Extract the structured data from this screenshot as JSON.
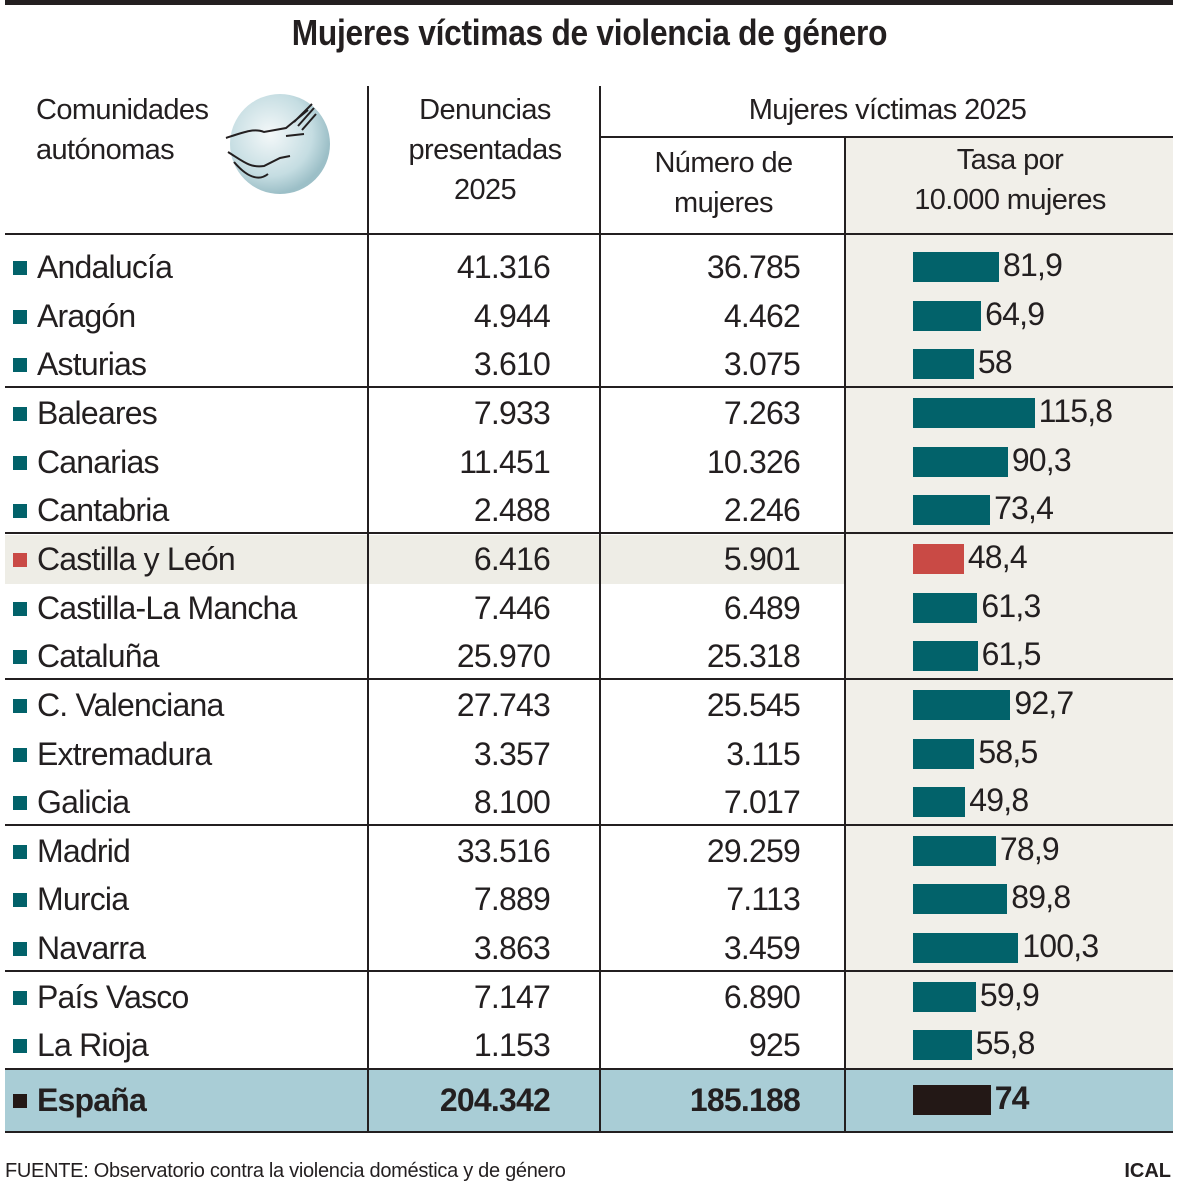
{
  "title": "Mujeres víctimas de violencia de género",
  "headers": {
    "region": [
      "Comunidades",
      "autónomas"
    ],
    "denuncias": [
      "Denuncias",
      "presentadas",
      "2025"
    ],
    "group": "Mujeres víctimas 2025",
    "numero": [
      "Número de",
      "mujeres"
    ],
    "tasa": [
      "Tasa por",
      "10.000 mujeres"
    ]
  },
  "icon": "hand-grabbing-wrist-icon",
  "colors": {
    "bar": "#02626a",
    "highlight_bar": "#c94a45",
    "total_bar": "#231816",
    "total_row_bg": "#a9cdd6",
    "highlight_row_bg": "#eeede6",
    "tasa_bg": "#f1efe9"
  },
  "chart_data": {
    "type": "table",
    "columns": [
      "Comunidades autónomas",
      "Denuncias presentadas 2025",
      "Número de mujeres",
      "Tasa por 10.000 mujeres"
    ],
    "rows": [
      {
        "region": "Andalucía",
        "denuncias": "41.316",
        "mujeres": "36.785",
        "tasa_label": "81,9",
        "tasa": 81.9
      },
      {
        "region": "Aragón",
        "denuncias": "4.944",
        "mujeres": "4.462",
        "tasa_label": "64,9",
        "tasa": 64.9
      },
      {
        "region": "Asturias",
        "denuncias": "3.610",
        "mujeres": "3.075",
        "tasa_label": "58",
        "tasa": 58
      },
      {
        "region": "Baleares",
        "denuncias": "7.933",
        "mujeres": "7.263",
        "tasa_label": "115,8",
        "tasa": 115.8
      },
      {
        "region": "Canarias",
        "denuncias": "11.451",
        "mujeres": "10.326",
        "tasa_label": "90,3",
        "tasa": 90.3
      },
      {
        "region": "Cantabria",
        "denuncias": "2.488",
        "mujeres": "2.246",
        "tasa_label": "73,4",
        "tasa": 73.4
      },
      {
        "region": "Castilla y León",
        "denuncias": "6.416",
        "mujeres": "5.901",
        "tasa_label": "48,4",
        "tasa": 48.4,
        "highlight": true
      },
      {
        "region": "Castilla-La Mancha",
        "denuncias": "7.446",
        "mujeres": "6.489",
        "tasa_label": "61,3",
        "tasa": 61.3
      },
      {
        "region": "Cataluña",
        "denuncias": "25.970",
        "mujeres": "25.318",
        "tasa_label": "61,5",
        "tasa": 61.5
      },
      {
        "region": "C. Valenciana",
        "denuncias": "27.743",
        "mujeres": "25.545",
        "tasa_label": "92,7",
        "tasa": 92.7
      },
      {
        "region": "Extremadura",
        "denuncias": "3.357",
        "mujeres": "3.115",
        "tasa_label": "58,5",
        "tasa": 58.5
      },
      {
        "region": "Galicia",
        "denuncias": "8.100",
        "mujeres": "7.017",
        "tasa_label": "49,8",
        "tasa": 49.8
      },
      {
        "region": "Madrid",
        "denuncias": "33.516",
        "mujeres": "29.259",
        "tasa_label": "78,9",
        "tasa": 78.9
      },
      {
        "region": "Murcia",
        "denuncias": "7.889",
        "mujeres": "7.113",
        "tasa_label": "89,8",
        "tasa": 89.8
      },
      {
        "region": "Navarra",
        "denuncias": "3.863",
        "mujeres": "3.459",
        "tasa_label": "100,3",
        "tasa": 100.3
      },
      {
        "region": "País Vasco",
        "denuncias": "7.147",
        "mujeres": "6.890",
        "tasa_label": "59,9",
        "tasa": 59.9
      },
      {
        "region": "La Rioja",
        "denuncias": "1.153",
        "mujeres": "925",
        "tasa_label": "55,8",
        "tasa": 55.8
      }
    ],
    "total": {
      "region": "España",
      "denuncias": "204.342",
      "mujeres": "185.188",
      "tasa_label": "74",
      "tasa": 74
    }
  },
  "footer": {
    "source": "FUENTE: Observatorio contra la violencia doméstica y de género",
    "credit": "ICAL"
  }
}
